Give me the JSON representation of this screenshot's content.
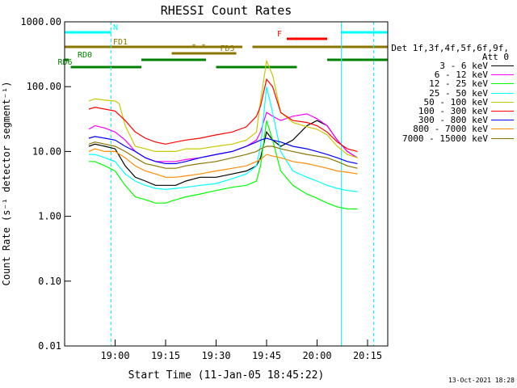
{
  "chart_data": {
    "type": "line",
    "title": "RHESSI Count Rates",
    "xlabel": "Start Time (11-Jan-05 18:45:22)",
    "ylabel": "Count Rate (s⁻¹ detector segment⁻¹)",
    "y_scale": "log",
    "ylim": [
      0.01,
      1000
    ],
    "xlim_minutes": [
      18.75,
      20.35
    ],
    "x_ticks": [
      "19:00",
      "19:15",
      "19:30",
      "19:45",
      "20:00",
      "20:15"
    ],
    "y_ticks": [
      "0.01",
      "0.10",
      "1.00",
      "10.00",
      "100.00",
      "1000.00"
    ],
    "grid": false,
    "legend_position": "right",
    "legend_header": [
      "Det 1f,3f,4f,5f,6f,9f,",
      "Att 0"
    ],
    "series": [
      {
        "name": "3 - 6 keV",
        "color": "#000000",
        "points": [
          [
            18.87,
            12
          ],
          [
            18.9,
            13
          ],
          [
            18.95,
            12
          ],
          [
            19.0,
            11
          ],
          [
            19.05,
            6
          ],
          [
            19.1,
            4
          ],
          [
            19.15,
            3.5
          ],
          [
            19.2,
            3
          ],
          [
            19.25,
            3
          ],
          [
            19.3,
            3
          ],
          [
            19.35,
            3.5
          ],
          [
            19.42,
            4
          ],
          [
            19.5,
            4
          ],
          [
            19.58,
            4.5
          ],
          [
            19.65,
            5
          ],
          [
            19.7,
            6
          ],
          [
            19.72,
            8
          ],
          [
            19.75,
            20
          ],
          [
            19.78,
            15
          ],
          [
            19.82,
            12
          ],
          [
            19.88,
            15
          ],
          [
            19.95,
            25
          ],
          [
            20.0,
            30
          ],
          [
            20.05,
            25
          ],
          [
            20.1,
            15
          ],
          [
            20.15,
            10
          ],
          [
            20.2,
            8
          ]
        ]
      },
      {
        "name": "6 - 12 keV",
        "color": "#ff00ff",
        "points": [
          [
            18.87,
            22
          ],
          [
            18.9,
            25
          ],
          [
            18.95,
            23
          ],
          [
            19.0,
            20
          ],
          [
            19.05,
            15
          ],
          [
            19.1,
            10
          ],
          [
            19.15,
            8
          ],
          [
            19.2,
            7
          ],
          [
            19.25,
            7
          ],
          [
            19.3,
            7
          ],
          [
            19.35,
            7.5
          ],
          [
            19.42,
            8
          ],
          [
            19.5,
            9
          ],
          [
            19.58,
            10
          ],
          [
            19.65,
            12
          ],
          [
            19.7,
            15
          ],
          [
            19.72,
            20
          ],
          [
            19.75,
            40
          ],
          [
            19.78,
            35
          ],
          [
            19.82,
            30
          ],
          [
            19.88,
            35
          ],
          [
            19.95,
            38
          ],
          [
            20.0,
            32
          ],
          [
            20.05,
            25
          ],
          [
            20.1,
            15
          ],
          [
            20.15,
            10
          ],
          [
            20.2,
            8
          ]
        ]
      },
      {
        "name": "12 - 25 keV",
        "color": "#00ff00",
        "points": [
          [
            18.87,
            7
          ],
          [
            18.9,
            7
          ],
          [
            18.95,
            6
          ],
          [
            19.0,
            5
          ],
          [
            19.05,
            3
          ],
          [
            19.1,
            2
          ],
          [
            19.15,
            1.8
          ],
          [
            19.2,
            1.6
          ],
          [
            19.25,
            1.6
          ],
          [
            19.3,
            1.8
          ],
          [
            19.35,
            2
          ],
          [
            19.42,
            2.2
          ],
          [
            19.5,
            2.5
          ],
          [
            19.58,
            2.8
          ],
          [
            19.65,
            3
          ],
          [
            19.7,
            3.5
          ],
          [
            19.72,
            6
          ],
          [
            19.75,
            30
          ],
          [
            19.78,
            15
          ],
          [
            19.82,
            5
          ],
          [
            19.88,
            3
          ],
          [
            19.95,
            2.2
          ],
          [
            20.0,
            1.9
          ],
          [
            20.05,
            1.6
          ],
          [
            20.1,
            1.4
          ],
          [
            20.15,
            1.3
          ],
          [
            20.2,
            1.3
          ]
        ]
      },
      {
        "name": "25 - 50 keV",
        "color": "#00ffff",
        "points": [
          [
            18.87,
            9
          ],
          [
            18.9,
            9
          ],
          [
            18.95,
            8
          ],
          [
            19.0,
            7
          ],
          [
            19.05,
            4.5
          ],
          [
            19.1,
            3.5
          ],
          [
            19.15,
            3
          ],
          [
            19.2,
            2.7
          ],
          [
            19.25,
            2.6
          ],
          [
            19.3,
            2.7
          ],
          [
            19.35,
            2.8
          ],
          [
            19.42,
            3
          ],
          [
            19.5,
            3.2
          ],
          [
            19.58,
            3.8
          ],
          [
            19.65,
            4.5
          ],
          [
            19.7,
            6
          ],
          [
            19.72,
            12
          ],
          [
            19.75,
            100
          ],
          [
            19.78,
            40
          ],
          [
            19.82,
            10
          ],
          [
            19.88,
            5
          ],
          [
            19.95,
            4
          ],
          [
            20.0,
            3.5
          ],
          [
            20.05,
            3
          ],
          [
            20.1,
            2.7
          ],
          [
            20.15,
            2.5
          ],
          [
            20.2,
            2.4
          ]
        ]
      },
      {
        "name": "50 - 100 keV",
        "color": "#c8c800",
        "points": [
          [
            18.87,
            60
          ],
          [
            18.9,
            65
          ],
          [
            18.95,
            62
          ],
          [
            19.0,
            60
          ],
          [
            19.02,
            55
          ],
          [
            19.05,
            25
          ],
          [
            19.1,
            12
          ],
          [
            19.15,
            11
          ],
          [
            19.2,
            10
          ],
          [
            19.25,
            10
          ],
          [
            19.3,
            10
          ],
          [
            19.35,
            11
          ],
          [
            19.42,
            11
          ],
          [
            19.5,
            12
          ],
          [
            19.58,
            13
          ],
          [
            19.65,
            15
          ],
          [
            19.7,
            20
          ],
          [
            19.72,
            60
          ],
          [
            19.75,
            250
          ],
          [
            19.78,
            150
          ],
          [
            19.82,
            40
          ],
          [
            19.88,
            28
          ],
          [
            19.95,
            24
          ],
          [
            20.0,
            22
          ],
          [
            20.05,
            18
          ],
          [
            20.1,
            12
          ],
          [
            20.15,
            9
          ],
          [
            20.2,
            8
          ]
        ]
      },
      {
        "name": "100 - 300 keV",
        "color": "#ff0000",
        "points": [
          [
            18.87,
            45
          ],
          [
            18.9,
            48
          ],
          [
            18.95,
            45
          ],
          [
            19.0,
            42
          ],
          [
            19.05,
            30
          ],
          [
            19.1,
            20
          ],
          [
            19.15,
            16
          ],
          [
            19.2,
            14
          ],
          [
            19.25,
            13
          ],
          [
            19.3,
            14
          ],
          [
            19.35,
            15
          ],
          [
            19.42,
            16
          ],
          [
            19.5,
            18
          ],
          [
            19.58,
            20
          ],
          [
            19.65,
            24
          ],
          [
            19.7,
            35
          ],
          [
            19.72,
            50
          ],
          [
            19.75,
            130
          ],
          [
            19.78,
            100
          ],
          [
            19.82,
            40
          ],
          [
            19.88,
            30
          ],
          [
            19.95,
            28
          ],
          [
            20.0,
            25
          ],
          [
            20.05,
            20
          ],
          [
            20.1,
            14
          ],
          [
            20.15,
            11
          ],
          [
            20.2,
            10
          ]
        ]
      },
      {
        "name": "300 - 800 keV",
        "color": "#0000ff",
        "points": [
          [
            18.87,
            16
          ],
          [
            18.9,
            17
          ],
          [
            18.95,
            16
          ],
          [
            19.0,
            15
          ],
          [
            19.05,
            12
          ],
          [
            19.1,
            10
          ],
          [
            19.15,
            8
          ],
          [
            19.2,
            7
          ],
          [
            19.25,
            6.5
          ],
          [
            19.3,
            6.5
          ],
          [
            19.35,
            7
          ],
          [
            19.42,
            8
          ],
          [
            19.5,
            9
          ],
          [
            19.58,
            10
          ],
          [
            19.65,
            12
          ],
          [
            19.7,
            14
          ],
          [
            19.72,
            15
          ],
          [
            19.75,
            16
          ],
          [
            19.78,
            15
          ],
          [
            19.82,
            14
          ],
          [
            19.88,
            12
          ],
          [
            19.95,
            11
          ],
          [
            20.0,
            10
          ],
          [
            20.05,
            9
          ],
          [
            20.1,
            8
          ],
          [
            20.15,
            7
          ],
          [
            20.2,
            6.5
          ]
        ]
      },
      {
        "name": "800 - 7000 keV",
        "color": "#ff8c00",
        "points": [
          [
            18.87,
            10
          ],
          [
            18.9,
            11
          ],
          [
            18.95,
            10
          ],
          [
            19.0,
            10
          ],
          [
            19.05,
            8
          ],
          [
            19.1,
            6
          ],
          [
            19.15,
            5
          ],
          [
            19.2,
            4.5
          ],
          [
            19.25,
            4
          ],
          [
            19.3,
            4
          ],
          [
            19.35,
            4.2
          ],
          [
            19.42,
            4.5
          ],
          [
            19.5,
            5
          ],
          [
            19.58,
            5.5
          ],
          [
            19.65,
            6
          ],
          [
            19.7,
            7
          ],
          [
            19.72,
            7.5
          ],
          [
            19.75,
            9
          ],
          [
            19.78,
            8.5
          ],
          [
            19.82,
            8
          ],
          [
            19.88,
            7
          ],
          [
            19.95,
            6.5
          ],
          [
            20.0,
            6
          ],
          [
            20.05,
            5.5
          ],
          [
            20.1,
            5
          ],
          [
            20.15,
            4.8
          ],
          [
            20.2,
            4.5
          ]
        ]
      },
      {
        "name": "7000 - 15000 keV",
        "color": "#8b7500",
        "points": [
          [
            18.87,
            13
          ],
          [
            18.9,
            14
          ],
          [
            18.95,
            13
          ],
          [
            19.0,
            12
          ],
          [
            19.05,
            10
          ],
          [
            19.1,
            8
          ],
          [
            19.15,
            6.5
          ],
          [
            19.2,
            6
          ],
          [
            19.25,
            5.5
          ],
          [
            19.3,
            5.5
          ],
          [
            19.35,
            6
          ],
          [
            19.42,
            6.5
          ],
          [
            19.5,
            7
          ],
          [
            19.58,
            8
          ],
          [
            19.65,
            9
          ],
          [
            19.7,
            10
          ],
          [
            19.72,
            11
          ],
          [
            19.75,
            12
          ],
          [
            19.78,
            12
          ],
          [
            19.82,
            11
          ],
          [
            19.88,
            10
          ],
          [
            19.95,
            9
          ],
          [
            20.0,
            8.5
          ],
          [
            20.05,
            8
          ],
          [
            20.1,
            7
          ],
          [
            20.15,
            6
          ],
          [
            20.2,
            5.5
          ]
        ]
      }
    ],
    "flag_bars": [
      {
        "label": "N",
        "color": "#00ffff",
        "segments": [
          [
            18.75,
            18.98
          ],
          [
            20.12,
            20.35
          ]
        ]
      },
      {
        "label": "F",
        "color": "#ff0000",
        "segments": [
          [
            19.85,
            20.05
          ]
        ]
      },
      {
        "label": "FD1",
        "color": "#8b7500",
        "segments": [
          [
            18.75,
            19.63
          ]
        ]
      },
      {
        "label": "",
        "color": "#8b7500",
        "segments": [
          [
            19.68,
            20.35
          ]
        ]
      },
      {
        "label": "FD3",
        "color": "#8b7500",
        "segments": [
          [
            19.28,
            19.6
          ]
        ]
      },
      {
        "label": "RD0",
        "color": "#008000",
        "segments": [
          [
            18.75,
            18.77
          ],
          [
            19.13,
            19.45
          ],
          [
            20.05,
            20.35
          ]
        ]
      },
      {
        "label": "RD6",
        "color": "#008000",
        "segments": [
          [
            18.78,
            19.13
          ],
          [
            19.5,
            19.9
          ]
        ]
      }
    ],
    "annotations": [
      "* *"
    ],
    "timestamp": "13-Oct-2021 18:28"
  }
}
